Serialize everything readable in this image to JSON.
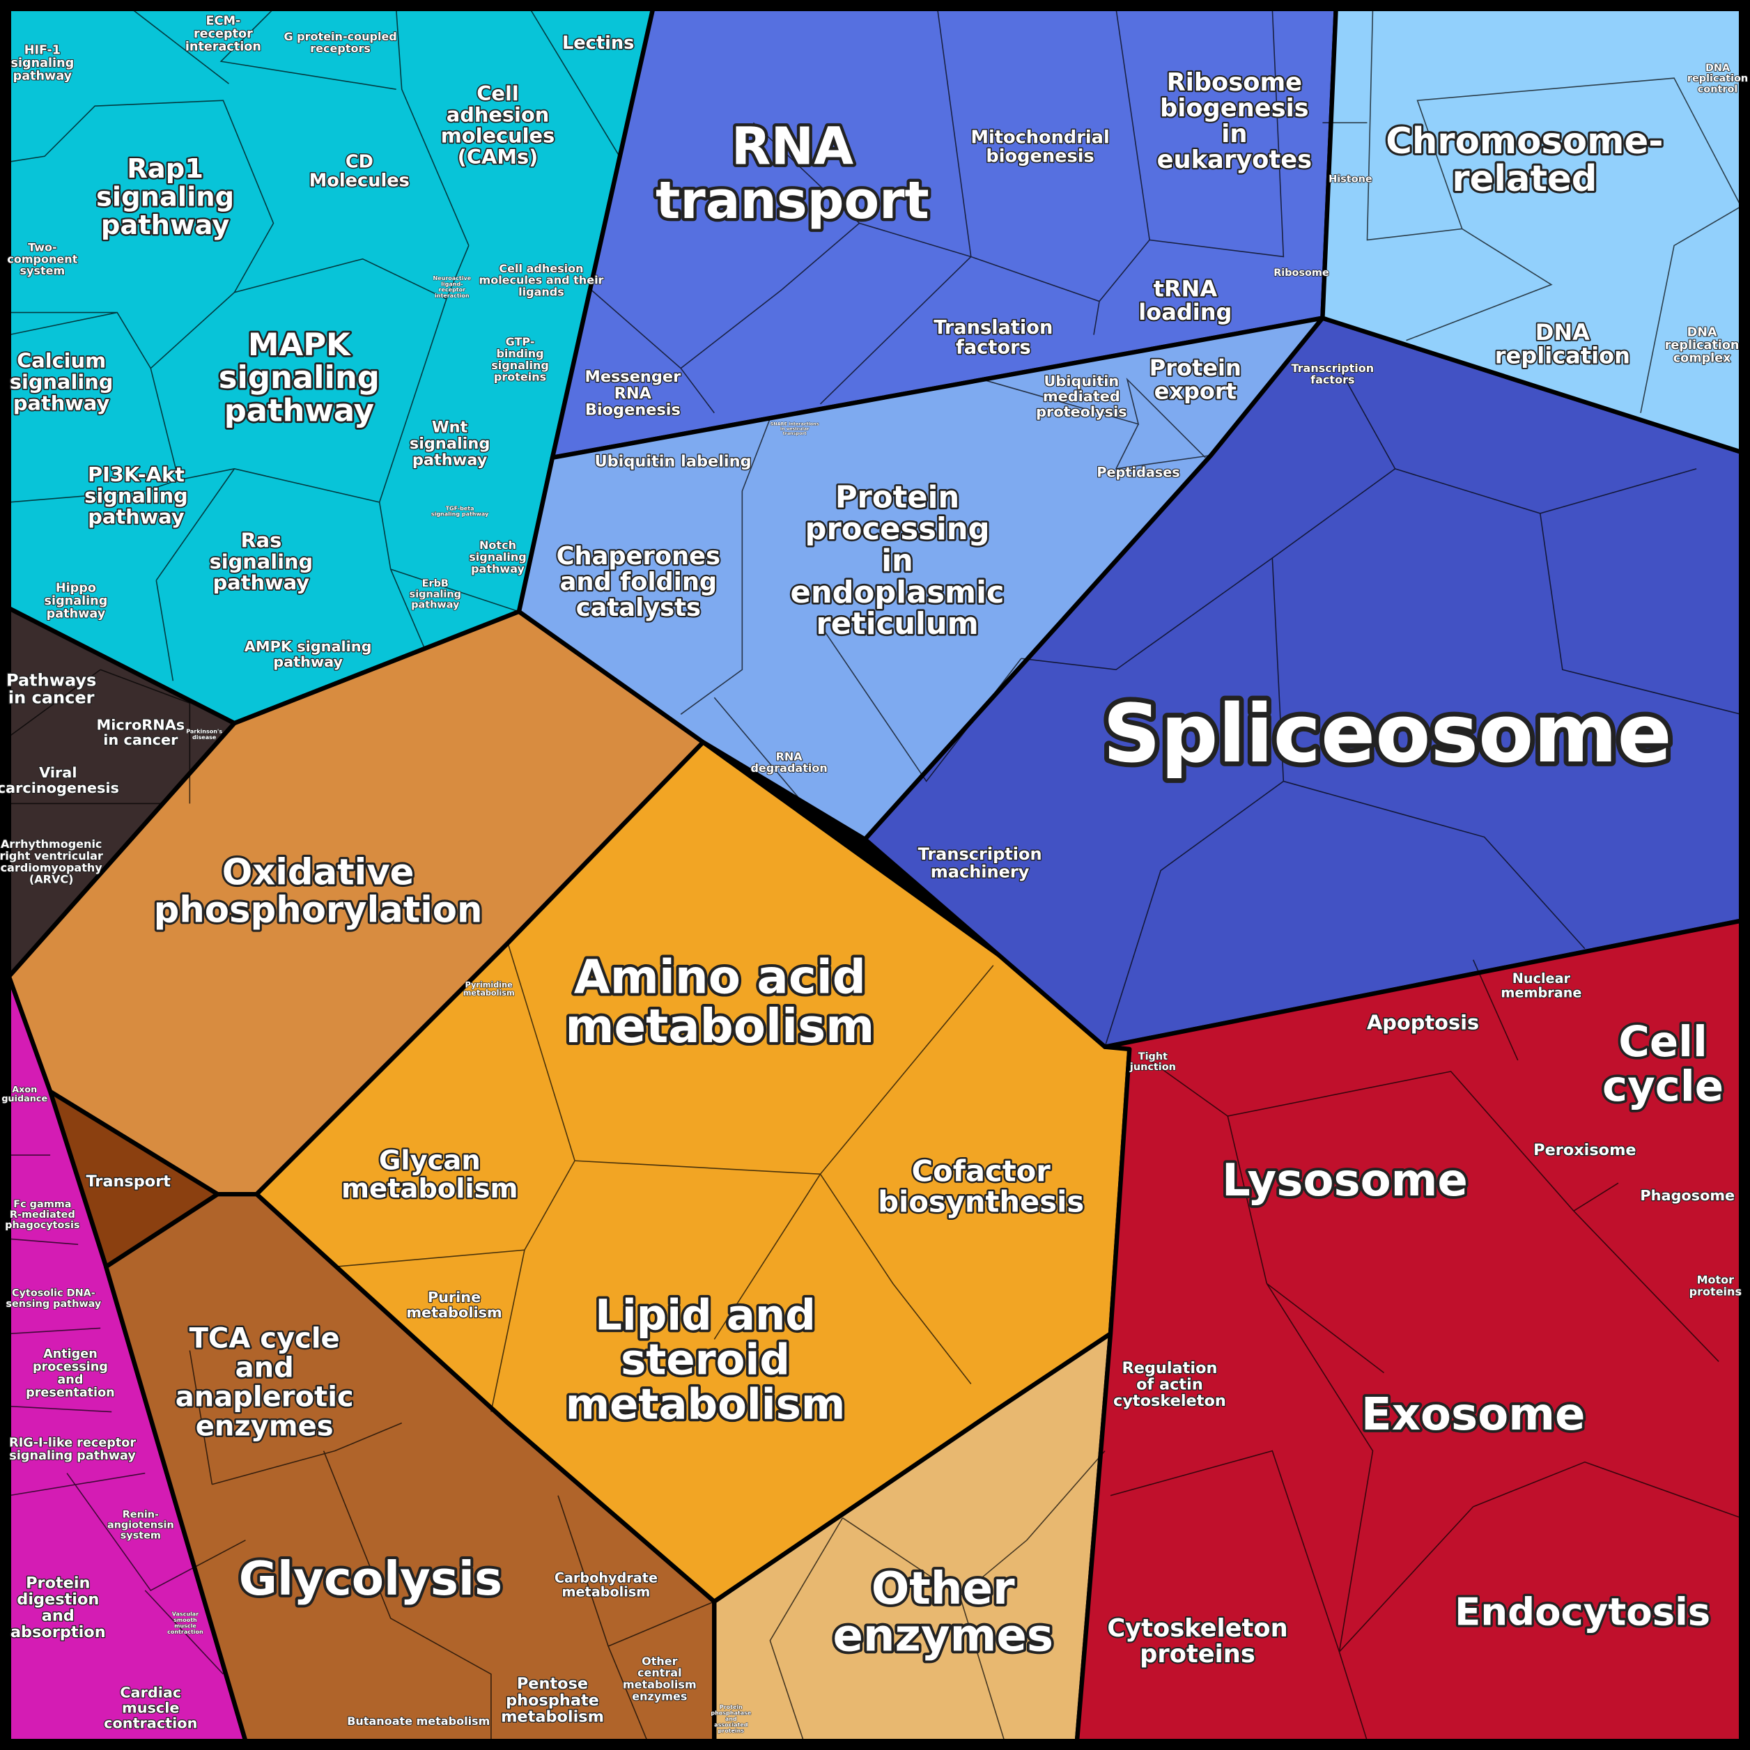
{
  "colors": {
    "signaling": "#08c4d8",
    "disease": "#3a2c2c",
    "oxphos": "#d88c40",
    "central_orange": "#f2a524",
    "carbohydrate": "#b0642a",
    "pink": "#d41cb4",
    "other_enzymes": "#e8b870",
    "transport_brown": "#8b4010",
    "rna_blue": "#5670e0",
    "protein_processing": "#7eaaf0",
    "spliceosome": "#4252c4",
    "chromosome": "#92d0fc",
    "red": "#c0102c"
  },
  "labels": {
    "hif1": "HIF-1\nsignaling\npathway",
    "ecm": "ECM-\nreceptor\ninteraction",
    "gpcr": "G protein-coupled\nreceptors",
    "lectins": "Lectins",
    "cams": "Cell\nadhesion\nmolecules\n(CAMs)",
    "cd": "CD\nMolecules",
    "rap1": "Rap1\nsignaling\npathway",
    "twocomp": "Two-\ncomponent\nsystem",
    "neuro": "Neuroactive\nligand-\nreceptor\ninteraction",
    "cam_lig": "Cell adhesion\nmolecules and their\nligands",
    "gtp": "GTP-\nbinding\nsignaling\nproteins",
    "calcium": "Calcium\nsignaling\npathway",
    "mapk": "MAPK\nsignaling\npathway",
    "wnt": "Wnt\nsignaling\npathway",
    "pi3k": "PI3K-Akt\nsignaling\npathway",
    "tgf": "TGF-beta\nsignaling pathway",
    "notch": "Notch\nsignaling\npathway",
    "ras": "Ras\nsignaling\npathway",
    "hippo": "Hippo\nsignaling\npathway",
    "erbb": "ErbB\nsignaling\npathway",
    "ampk": "AMPK signaling\npathway",
    "cancer": "Pathways\nin cancer",
    "mirna": "MicroRNAs\nin cancer",
    "parkinson": "Parkinson's\ndisease",
    "viral": "Viral\ncarcinogenesis",
    "arvc": "Arrhythmogenic\nright ventricular\ncardiomyopathy\n(ARVC)",
    "rna_transport": "RNA\ntransport",
    "mito": "Mitochondrial\nbiogenesis",
    "ribo_bio": "Ribosome\nbiogenesis\nin\neukaryotes",
    "histone": "Histone",
    "chromosome": "Chromosome-\nrelated",
    "dna_rep_ctrl": "DNA\nreplication\ncontrol",
    "trna": "tRNA\nloading",
    "ribosome": "Ribosome",
    "translation": "Translation\nfactors",
    "mrna": "Messenger\nRNA\nBiogenesis",
    "dna_rep": "DNA\nreplication",
    "dna_rep_cx": "DNA\nreplication\ncomplex",
    "tf": "Transcription\nfactors",
    "prot_export": "Protein\nexport",
    "ubiq_prot": "Ubiquitin\nmediated\nproteolysis",
    "snare": "SNARE interactions\nin vesicular\ntransport",
    "ubiq_label": "Ubiquitin labeling",
    "peptidases": "Peptidases",
    "er": "Protein\nprocessing\nin\nendoplasmic\nreticulum",
    "chaperones": "Chaperones\nand folding\ncatalysts",
    "spliceosome": "Spliceosome",
    "rna_deg": "RNA\ndegradation",
    "tx_mach": "Transcription\nmachinery",
    "oxphos": "Oxidative\nphosphorylation",
    "pyrimidine": "Pyrimidine\nmetabolism",
    "amino": "Amino acid\nmetabolism",
    "axon": "Axon\nguidance",
    "transport": "Transport",
    "glycan": "Glycan\nmetabolism",
    "cofactor": "Cofactor\nbiosynthesis",
    "fcgamma": "Fc gamma\nR-mediated\nphagocytosis",
    "cytodna": "Cytosolic DNA-\nsensing pathway",
    "purine": "Purine\nmetabolism",
    "lipid": "Lipid and\nsteroid\nmetabolism",
    "tca": "TCA cycle\nand\nanaplerotic\nenzymes",
    "antigen": "Antigen\nprocessing\nand\npresentation",
    "rigi": "RIG-I-like receptor\nsignaling pathway",
    "renin": "Renin-\nangiotensin\nsystem",
    "glycolysis": "Glycolysis",
    "carb": "Carbohydrate\nmetabolism",
    "other_enz": "Other\nenzymes",
    "prot_dig": "Protein\ndigestion\nand\nabsorption",
    "vsmc": "Vascular\nsmooth\nmuscle\ncontraction",
    "cardiac": "Cardiac\nmuscle\ncontraction",
    "pentose": "Pentose\nphosphate\nmetabolism",
    "other_central": "Other\ncentral\nmetabolism\nenzymes",
    "butanoate": "Butanoate metabolism",
    "phosphatase": "Protein\nphosphatase\nand\nassociated\nproteins",
    "tight": "Tight\njunction",
    "apoptosis": "Apoptosis",
    "nuclear": "Nuclear\nmembrane",
    "cellcycle": "Cell\ncycle",
    "lysosome": "Lysosome",
    "peroxisome": "Peroxisome",
    "phagosome": "Phagosome",
    "motor": "Motor\nproteins",
    "actin": "Regulation\nof actin\ncytoskeleton",
    "exosome": "Exosome",
    "endocytosis": "Endocytosis",
    "cytoskeleton": "Cytoskeleton\nproteins"
  }
}
